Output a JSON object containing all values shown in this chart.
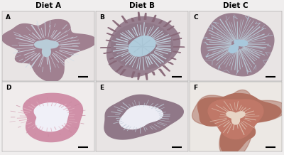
{
  "title_row": [
    "Diet A",
    "Diet B",
    "Diet C"
  ],
  "panel_labels": [
    "A",
    "B",
    "C",
    "D",
    "E",
    "F"
  ],
  "n_cols": 3,
  "n_rows": 2,
  "figure_bg": "#f0eeee",
  "panel_bg": "#f5f3f3",
  "title_fontsize": 7.5,
  "label_fontsize": 6.5,
  "title_fontweight": "bold",
  "label_fontweight": "bold",
  "tissue_colors": [
    "#9e8090",
    "#9e8090",
    "#9e8090",
    "#c87898",
    "#9e8090",
    "#b07060"
  ],
  "lumen_color": "#d8ecf0",
  "channel_color": "#c8e4ec",
  "tissue_dark": "#7a607a",
  "scale_bar_color": "#000000"
}
